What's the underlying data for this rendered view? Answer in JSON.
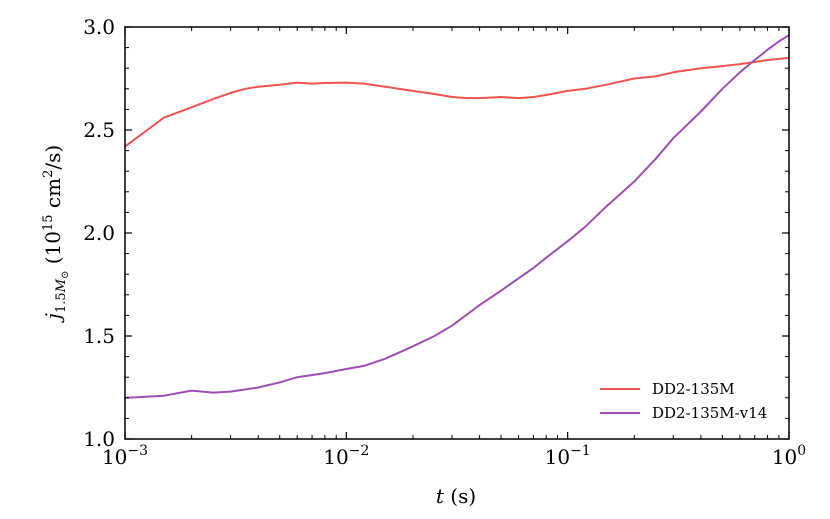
{
  "chart_data": {
    "type": "line",
    "xscale": "log",
    "xlim": [
      0.001,
      1
    ],
    "ylim": [
      1.0,
      3.0
    ],
    "xlabel": "t (s)",
    "ylabel": "j_{1.5M_⊙} (10^{15} cm^2/s)",
    "x_ticks": [
      {
        "value": 0.001,
        "base": "10",
        "exp": "−3"
      },
      {
        "value": 0.01,
        "base": "10",
        "exp": "−2"
      },
      {
        "value": 0.1,
        "base": "10",
        "exp": "−1"
      },
      {
        "value": 1,
        "base": "10",
        "exp": "0"
      }
    ],
    "y_ticks": [
      "1.0",
      "1.5",
      "2.0",
      "2.5",
      "3.0"
    ],
    "legend_position": "lower-right",
    "series": [
      {
        "name": "DD2-135M",
        "color": "#f0524f",
        "x": [
          0.001,
          0.0015,
          0.002,
          0.0025,
          0.003,
          0.0035,
          0.004,
          0.005,
          0.006,
          0.007,
          0.008,
          0.01,
          0.012,
          0.015,
          0.02,
          0.025,
          0.03,
          0.035,
          0.04,
          0.05,
          0.06,
          0.07,
          0.08,
          0.1,
          0.12,
          0.15,
          0.2,
          0.25,
          0.3,
          0.4,
          0.5,
          0.6,
          0.7,
          0.8,
          0.9,
          1.0
        ],
        "values": [
          2.42,
          2.56,
          2.61,
          2.65,
          2.68,
          2.7,
          2.71,
          2.72,
          2.73,
          2.725,
          2.728,
          2.73,
          2.725,
          2.71,
          2.69,
          2.675,
          2.66,
          2.655,
          2.655,
          2.66,
          2.655,
          2.66,
          2.67,
          2.69,
          2.7,
          2.72,
          2.75,
          2.76,
          2.78,
          2.8,
          2.81,
          2.82,
          2.83,
          2.84,
          2.845,
          2.85
        ]
      },
      {
        "name": "DD2-135M-v14",
        "color": "#9c4fb0",
        "x": [
          0.001,
          0.0015,
          0.002,
          0.0025,
          0.003,
          0.004,
          0.005,
          0.006,
          0.008,
          0.01,
          0.012,
          0.015,
          0.02,
          0.025,
          0.03,
          0.04,
          0.05,
          0.06,
          0.07,
          0.08,
          0.1,
          0.12,
          0.15,
          0.2,
          0.25,
          0.3,
          0.4,
          0.5,
          0.6,
          0.7,
          0.8,
          0.9,
          1.0
        ],
        "values": [
          1.2,
          1.21,
          1.235,
          1.225,
          1.23,
          1.25,
          1.275,
          1.3,
          1.32,
          1.34,
          1.355,
          1.39,
          1.45,
          1.5,
          1.55,
          1.65,
          1.72,
          1.78,
          1.83,
          1.88,
          1.96,
          2.03,
          2.13,
          2.25,
          2.36,
          2.46,
          2.59,
          2.7,
          2.78,
          2.84,
          2.89,
          2.93,
          2.96
        ]
      }
    ]
  }
}
